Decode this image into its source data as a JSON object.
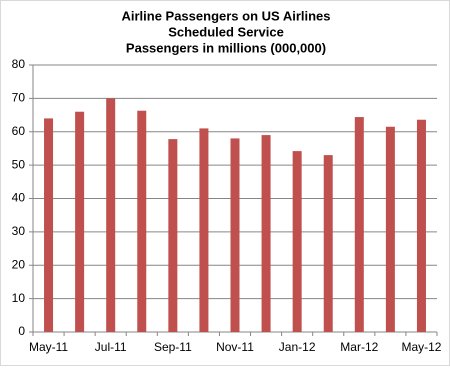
{
  "chart_data": {
    "type": "bar",
    "title": [
      "Airline Passengers  on US Airlines",
      "Scheduled Service",
      "Passengers  in millions (000,000)"
    ],
    "categories": [
      "May-11",
      null,
      "Jul-11",
      null,
      "Sep-11",
      null,
      "Nov-11",
      null,
      "Jan-12",
      null,
      "Mar-12",
      null,
      "May-12"
    ],
    "values": [
      64,
      66,
      70,
      66.3,
      57.8,
      61,
      58,
      59,
      54.2,
      53,
      64.4,
      61.5,
      63.6
    ],
    "color": "#c0504d",
    "ylim": [
      0,
      80
    ],
    "yticks": [
      0,
      10,
      20,
      30,
      40,
      50,
      60,
      70,
      80
    ],
    "grid": true
  }
}
